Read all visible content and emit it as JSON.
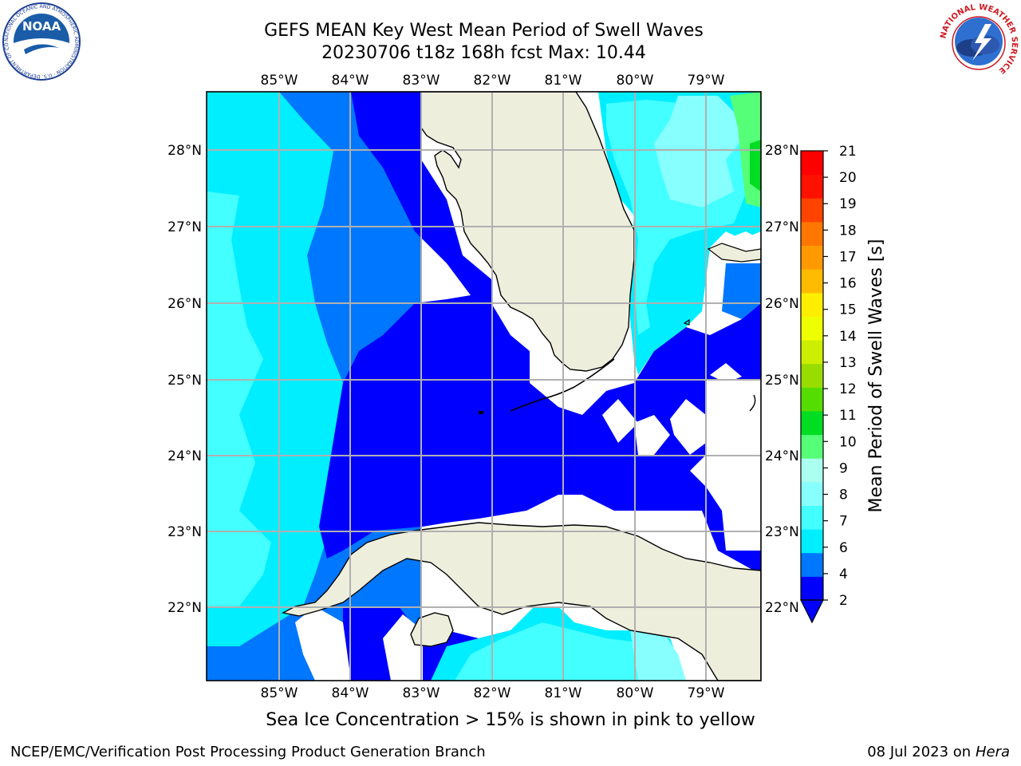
{
  "header": {
    "title_line1": "GEFS MEAN Key West Mean Period of Swell Waves",
    "title_line2": "20230706 t18z 168h fcst   Max: 10.44"
  },
  "map": {
    "lon_labels": [
      "85°W",
      "84°W",
      "83°W",
      "82°W",
      "81°W",
      "80°W",
      "79°W"
    ],
    "lat_labels": [
      "28°N",
      "27°N",
      "26°N",
      "25°N",
      "24°N",
      "23°N",
      "22°N"
    ],
    "land_color": "#eeeedd",
    "grid_color": "#b0b0b0"
  },
  "colorbar": {
    "label": "Mean Period of Swell Waves [s]",
    "ticks": [
      "21",
      "20",
      "19",
      "18",
      "17",
      "16",
      "15",
      "14",
      "13",
      "12",
      "11",
      "10",
      "9",
      "8",
      "7",
      "6",
      "4",
      "2"
    ],
    "colors": [
      "#0000ff",
      "#0077ff",
      "#00eeff",
      "#44ffff",
      "#88ffff",
      "#aaffee",
      "#55ff77",
      "#00dd22",
      "#55dd00",
      "#99dd00",
      "#ccee00",
      "#eeff00",
      "#ffee00",
      "#ffbb00",
      "#ff9900",
      "#ff7700",
      "#ff4400",
      "#ff1100",
      "#ff0000"
    ]
  },
  "footer": {
    "subtitle": "Sea Ice Concentration > 15% is shown in pink to yellow",
    "left": "NCEP/EMC/Verification Post Processing Product Generation Branch",
    "right_prefix": "08 Jul 2023 on ",
    "right_machine": "Hera"
  },
  "logos": {
    "noaa_text": "NOAA",
    "noaa_ring": "NATIONAL OCEANIC AND ATMOSPHERIC ADMINISTRATION · U.S. DEPARTMENT OF COMMERCE",
    "nws_ring": "NATIONAL WEATHER SERVICE"
  }
}
